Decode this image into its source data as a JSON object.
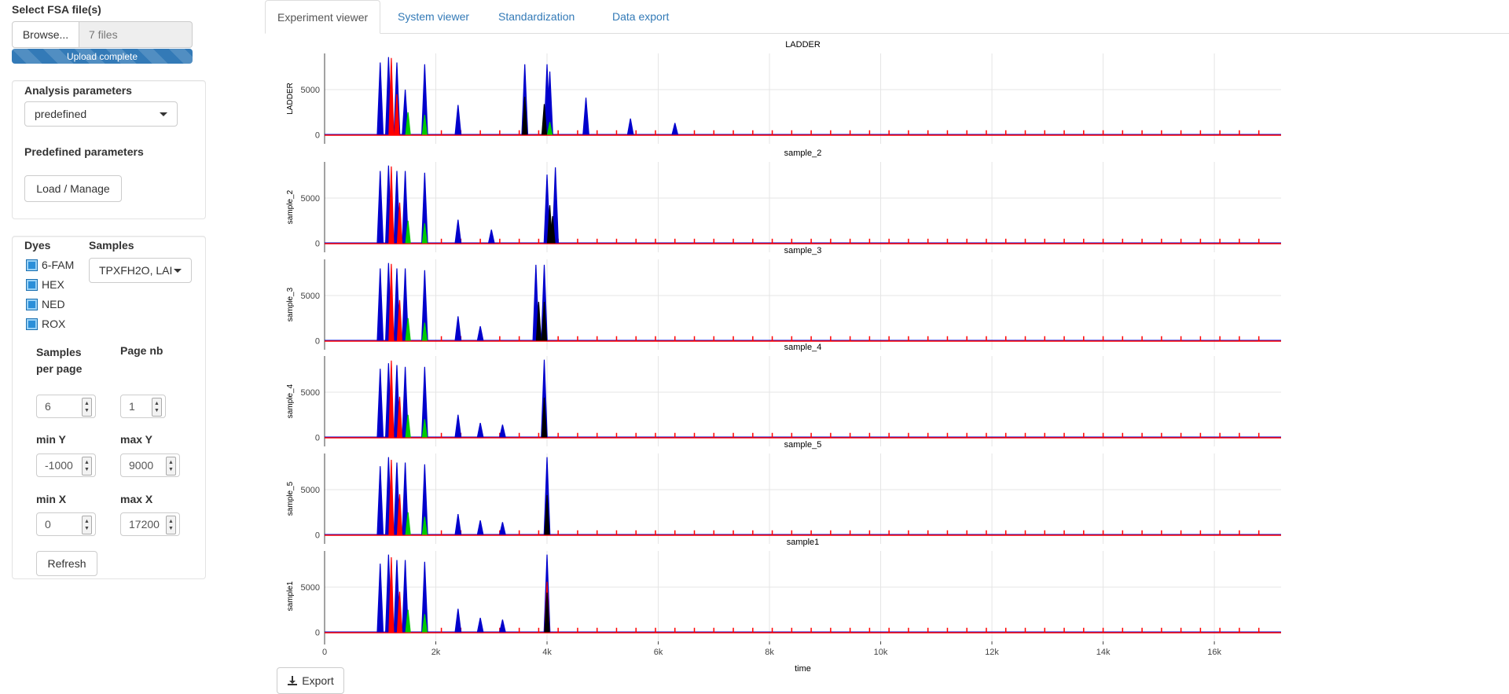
{
  "sidebar": {
    "file_label": "Select FSA file(s)",
    "browse_label": "Browse...",
    "file_count": "7 files",
    "upload_status": "Upload complete",
    "upload_progress": 1.0,
    "analysis": {
      "title": "Analysis parameters",
      "select_value": "predefined",
      "predefined_title": "Predefined parameters",
      "load_button": "Load / Manage"
    },
    "dyes_title": "Dyes",
    "dyes": [
      {
        "label": "6-FAM",
        "checked": true
      },
      {
        "label": "HEX",
        "checked": true
      },
      {
        "label": "NED",
        "checked": true
      },
      {
        "label": "ROX",
        "checked": true
      }
    ],
    "samples_title": "Samples",
    "samples_value": "TPXFH2O, LAI",
    "params": {
      "samples_per_page_label": "Samples per page",
      "samples_per_page": "6",
      "page_nb_label": "Page nb",
      "page_nb": "1",
      "min_y_label": "min Y",
      "min_y": "-1000",
      "max_y_label": "max Y",
      "max_y": "9000",
      "min_x_label": "min X",
      "min_x": "0",
      "max_x_label": "max X",
      "max_x": "17200"
    },
    "refresh_button": "Refresh"
  },
  "tabs": [
    {
      "label": "Experiment viewer",
      "active": true
    },
    {
      "label": "System viewer",
      "active": false
    },
    {
      "label": "Standardization",
      "active": false
    },
    {
      "label": "Data export",
      "active": false
    }
  ],
  "export_button": "Export",
  "colors": {
    "blue": "#0000cc",
    "red": "#ff0000",
    "black": "#000000",
    "green": "#00cc00",
    "link": "#337ab7"
  },
  "chart_data": {
    "type": "line",
    "xlabel": "time",
    "x_ticks": [
      0,
      2000,
      4000,
      6000,
      8000,
      10000,
      12000,
      14000,
      16000
    ],
    "x_tick_labels": [
      "0",
      "2k",
      "4k",
      "6k",
      "8k",
      "10k",
      "12k",
      "14k",
      "16k"
    ],
    "y_ticks": [
      0,
      5000
    ],
    "y_tick_labels": [
      "0",
      "5000"
    ],
    "xlim": [
      0,
      17200
    ],
    "ylim": [
      -1000,
      9000
    ],
    "series_colors": [
      "#0000cc",
      "#000000",
      "#00cc00",
      "#ff0000"
    ],
    "panels": [
      {
        "title": "LADDER",
        "ylabel": "LADDER",
        "peaks": [
          [
            1000,
            8000,
            "#0000cc"
          ],
          [
            1150,
            8600,
            "#0000cc"
          ],
          [
            1300,
            8000,
            "#0000cc"
          ],
          [
            1450,
            5000,
            "#0000cc"
          ],
          [
            1800,
            7800,
            "#0000cc"
          ],
          [
            2400,
            3300,
            "#0000cc"
          ],
          [
            3600,
            7800,
            "#0000cc"
          ],
          [
            4000,
            7800,
            "#0000cc"
          ],
          [
            4050,
            7000,
            "#0000cc"
          ],
          [
            4700,
            4100,
            "#0000cc"
          ],
          [
            5500,
            1800,
            "#0000cc"
          ],
          [
            6300,
            1300,
            "#0000cc"
          ],
          [
            1200,
            8500,
            "#ff0000"
          ],
          [
            1300,
            4500,
            "#ff0000"
          ],
          [
            3600,
            4200,
            "#000000"
          ],
          [
            3950,
            3400,
            "#000000"
          ],
          [
            1500,
            2500,
            "#00cc00"
          ],
          [
            1800,
            2200,
            "#00cc00"
          ],
          [
            4050,
            1400,
            "#00cc00"
          ]
        ]
      },
      {
        "title": "sample_2",
        "ylabel": "sample_2",
        "peaks": [
          [
            1000,
            8000,
            "#0000cc"
          ],
          [
            1150,
            8600,
            "#0000cc"
          ],
          [
            1300,
            8000,
            "#0000cc"
          ],
          [
            1450,
            8000,
            "#0000cc"
          ],
          [
            1800,
            7800,
            "#0000cc"
          ],
          [
            2400,
            2600,
            "#0000cc"
          ],
          [
            3000,
            1500,
            "#0000cc"
          ],
          [
            4000,
            7600,
            "#0000cc"
          ],
          [
            4150,
            8400,
            "#0000cc"
          ],
          [
            1200,
            8500,
            "#ff0000"
          ],
          [
            1350,
            4500,
            "#ff0000"
          ],
          [
            4050,
            4200,
            "#000000"
          ],
          [
            4100,
            3000,
            "#000000"
          ],
          [
            1500,
            2500,
            "#00cc00"
          ],
          [
            1800,
            2200,
            "#00cc00"
          ]
        ]
      },
      {
        "title": "sample_3",
        "ylabel": "sample_3",
        "peaks": [
          [
            1000,
            8000,
            "#0000cc"
          ],
          [
            1150,
            8600,
            "#0000cc"
          ],
          [
            1300,
            8000,
            "#0000cc"
          ],
          [
            1450,
            8000,
            "#0000cc"
          ],
          [
            1800,
            7800,
            "#0000cc"
          ],
          [
            2400,
            2700,
            "#0000cc"
          ],
          [
            2800,
            1600,
            "#0000cc"
          ],
          [
            3800,
            8400,
            "#0000cc"
          ],
          [
            3950,
            8400,
            "#0000cc"
          ],
          [
            1200,
            8500,
            "#ff0000"
          ],
          [
            1350,
            4500,
            "#ff0000"
          ],
          [
            3850,
            4300,
            "#000000"
          ],
          [
            3950,
            4300,
            "#000000"
          ],
          [
            1500,
            2500,
            "#00cc00"
          ],
          [
            1800,
            2000,
            "#00cc00"
          ]
        ]
      },
      {
        "title": "sample_4",
        "ylabel": "sample_4",
        "peaks": [
          [
            1000,
            7600,
            "#0000cc"
          ],
          [
            1150,
            8200,
            "#0000cc"
          ],
          [
            1300,
            8000,
            "#0000cc"
          ],
          [
            1450,
            7800,
            "#0000cc"
          ],
          [
            1800,
            7800,
            "#0000cc"
          ],
          [
            2400,
            2500,
            "#0000cc"
          ],
          [
            2800,
            1600,
            "#0000cc"
          ],
          [
            3200,
            1400,
            "#0000cc"
          ],
          [
            3950,
            8600,
            "#0000cc"
          ],
          [
            1200,
            8500,
            "#ff0000"
          ],
          [
            1350,
            4500,
            "#ff0000"
          ],
          [
            3950,
            4400,
            "#000000"
          ],
          [
            1500,
            2500,
            "#00cc00"
          ],
          [
            1800,
            2000,
            "#00cc00"
          ]
        ]
      },
      {
        "title": "sample_5",
        "ylabel": "sample_5",
        "peaks": [
          [
            1000,
            7600,
            "#0000cc"
          ],
          [
            1150,
            8600,
            "#0000cc"
          ],
          [
            1300,
            8000,
            "#0000cc"
          ],
          [
            1450,
            8000,
            "#0000cc"
          ],
          [
            1800,
            7800,
            "#0000cc"
          ],
          [
            2400,
            2300,
            "#0000cc"
          ],
          [
            2800,
            1600,
            "#0000cc"
          ],
          [
            3200,
            1400,
            "#0000cc"
          ],
          [
            4000,
            8600,
            "#0000cc"
          ],
          [
            1200,
            8300,
            "#ff0000"
          ],
          [
            1350,
            4500,
            "#ff0000"
          ],
          [
            4000,
            4400,
            "#000000"
          ],
          [
            1500,
            2500,
            "#00cc00"
          ],
          [
            1800,
            2000,
            "#00cc00"
          ]
        ]
      },
      {
        "title": "sample1",
        "ylabel": "sample1",
        "peaks": [
          [
            1000,
            7600,
            "#0000cc"
          ],
          [
            1150,
            8600,
            "#0000cc"
          ],
          [
            1300,
            8000,
            "#0000cc"
          ],
          [
            1450,
            8000,
            "#0000cc"
          ],
          [
            1800,
            7800,
            "#0000cc"
          ],
          [
            2400,
            2600,
            "#0000cc"
          ],
          [
            2800,
            1600,
            "#0000cc"
          ],
          [
            3200,
            1400,
            "#0000cc"
          ],
          [
            4000,
            8600,
            "#0000cc"
          ],
          [
            1200,
            8300,
            "#ff0000"
          ],
          [
            1350,
            4500,
            "#ff0000"
          ],
          [
            4000,
            5600,
            "#ff0000"
          ],
          [
            4000,
            4400,
            "#000000"
          ],
          [
            1500,
            2500,
            "#00cc00"
          ],
          [
            1800,
            2000,
            "#00cc00"
          ]
        ]
      }
    ]
  }
}
